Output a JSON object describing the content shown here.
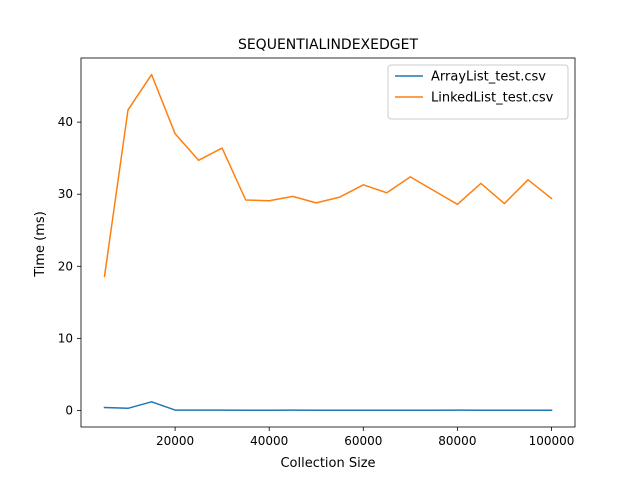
{
  "chart_data": {
    "type": "line",
    "title": "SEQUENTIALINDEXEDGET",
    "xlabel": "Collection Size",
    "ylabel": "Time (ms)",
    "xlim": [
      0,
      105000
    ],
    "ylim": [
      -2.3,
      48.9
    ],
    "xticks": [
      20000,
      40000,
      60000,
      80000,
      100000
    ],
    "yticks": [
      0,
      10,
      20,
      30,
      40
    ],
    "grid": false,
    "legend_position": "top-right",
    "x": [
      5000,
      10000,
      15000,
      20000,
      25000,
      30000,
      35000,
      40000,
      45000,
      50000,
      55000,
      60000,
      65000,
      70000,
      75000,
      80000,
      85000,
      90000,
      95000,
      100000
    ],
    "series": [
      {
        "name": "ArrayList_test.csv",
        "color": "#1f77b4",
        "values": [
          0.4,
          0.3,
          1.2,
          0.05,
          0.05,
          0.05,
          0.02,
          0.02,
          0.04,
          0.02,
          0.02,
          0.02,
          0.02,
          0.02,
          0.02,
          0.05,
          0.02,
          0.02,
          0.02,
          0.02
        ]
      },
      {
        "name": "LinkedList_test.csv",
        "color": "#ff7f0e",
        "values": [
          18.6,
          41.7,
          46.6,
          38.4,
          34.7,
          36.4,
          29.2,
          29.1,
          29.7,
          28.8,
          29.6,
          31.3,
          30.2,
          32.4,
          30.5,
          28.6,
          31.5,
          28.7,
          32.0,
          29.4
        ]
      }
    ]
  }
}
